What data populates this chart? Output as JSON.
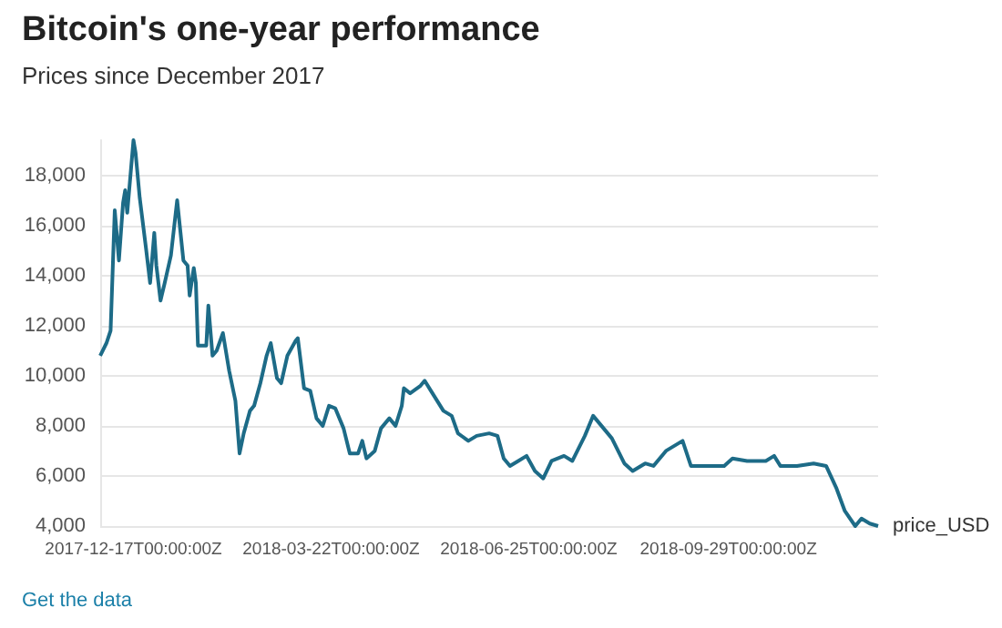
{
  "chart_data": {
    "type": "line",
    "title": "Bitcoin's one-year performance",
    "subtitle": "Prices since December 2017",
    "annotations": [
      "Get the data"
    ],
    "x": [
      "2017-12-01",
      "2017-12-04",
      "2017-12-06",
      "2017-12-08",
      "2017-12-10",
      "2017-12-12",
      "2017-12-13",
      "2017-12-14",
      "2017-12-17",
      "2017-12-18",
      "2017-12-20",
      "2017-12-23",
      "2017-12-25",
      "2017-12-27",
      "2017-12-28",
      "2017-12-30",
      "2018-01-01",
      "2018-01-04",
      "2018-01-07",
      "2018-01-10",
      "2018-01-12",
      "2018-01-13",
      "2018-01-15",
      "2018-01-16",
      "2018-01-17",
      "2018-01-21",
      "2018-01-22",
      "2018-01-24",
      "2018-01-26",
      "2018-01-29",
      "2018-02-01",
      "2018-02-04",
      "2018-02-06",
      "2018-02-08",
      "2018-02-11",
      "2018-02-13",
      "2018-02-16",
      "2018-02-19",
      "2018-02-21",
      "2018-02-24",
      "2018-02-26",
      "2018-03-01",
      "2018-03-05",
      "2018-03-06",
      "2018-03-09",
      "2018-03-12",
      "2018-03-15",
      "2018-03-18",
      "2018-03-21",
      "2018-03-24",
      "2018-03-28",
      "2018-03-31",
      "2018-04-04",
      "2018-04-06",
      "2018-04-08",
      "2018-04-12",
      "2018-04-15",
      "2018-04-19",
      "2018-04-22",
      "2018-04-25",
      "2018-04-26",
      "2018-04-29",
      "2018-05-04",
      "2018-05-06",
      "2018-05-09",
      "2018-05-12",
      "2018-05-15",
      "2018-05-19",
      "2018-05-22",
      "2018-05-27",
      "2018-05-31",
      "2018-06-06",
      "2018-06-10",
      "2018-06-13",
      "2018-06-16",
      "2018-06-20",
      "2018-06-24",
      "2018-06-28",
      "2018-07-02",
      "2018-07-06",
      "2018-07-12",
      "2018-07-16",
      "2018-07-22",
      "2018-07-26",
      "2018-07-29",
      "2018-08-04",
      "2018-08-10",
      "2018-08-14",
      "2018-08-20",
      "2018-08-24",
      "2018-08-30",
      "2018-09-07",
      "2018-09-11",
      "2018-09-18",
      "2018-09-27",
      "2018-10-01",
      "2018-10-08",
      "2018-10-17",
      "2018-10-21",
      "2018-10-24",
      "2018-11-01",
      "2018-11-09",
      "2018-11-15",
      "2018-11-20",
      "2018-11-24",
      "2018-11-29",
      "2018-12-02",
      "2018-12-06",
      "2018-12-10"
    ],
    "series": [
      {
        "name": "price_USD",
        "color": "#1d6b87",
        "values": [
          10800,
          11300,
          11800,
          16600,
          14600,
          16900,
          17400,
          16500,
          19400,
          18900,
          17100,
          15100,
          13700,
          15700,
          14400,
          13000,
          13700,
          14800,
          17000,
          14600,
          14400,
          13200,
          14300,
          13700,
          11200,
          11200,
          12800,
          10800,
          11000,
          11700,
          10200,
          9000,
          6900,
          7700,
          8600,
          8800,
          9700,
          10800,
          11300,
          9900,
          9700,
          10800,
          11400,
          11500,
          9500,
          9400,
          8300,
          8000,
          8800,
          8700,
          7900,
          6900,
          6900,
          7400,
          6700,
          7000,
          7900,
          8300,
          8000,
          8800,
          9500,
          9300,
          9600,
          9800,
          9400,
          9000,
          8600,
          8400,
          7700,
          7400,
          7600,
          7700,
          7600,
          6700,
          6400,
          6600,
          6800,
          6200,
          5900,
          6600,
          6800,
          6600,
          7600,
          8400,
          8100,
          7500,
          6500,
          6200,
          6500,
          6400,
          7000,
          7400,
          6400,
          6400,
          6400,
          6700,
          6600,
          6600,
          6800,
          6400,
          6400,
          6500,
          6400,
          5500,
          4600,
          4000,
          4300,
          4100,
          4000
        ]
      }
    ],
    "xlim": [
      "2017-12-01",
      "2018-12-10"
    ],
    "xticks": [
      {
        "value": "2017-12-17",
        "label": "2017-12-17T00:00:00Z"
      },
      {
        "value": "2018-03-22",
        "label": "2018-03-22T00:00:00Z"
      },
      {
        "value": "2018-06-25",
        "label": "2018-06-25T00:00:00Z"
      },
      {
        "value": "2018-09-29",
        "label": "2018-09-29T00:00:00Z"
      }
    ],
    "ylim": [
      4000,
      19400
    ],
    "yticks": [
      {
        "value": 4000,
        "label": "4,000"
      },
      {
        "value": 6000,
        "label": "6,000"
      },
      {
        "value": 8000,
        "label": "8,000"
      },
      {
        "value": 10000,
        "label": "10,000"
      },
      {
        "value": 12000,
        "label": "12,000"
      },
      {
        "value": 14000,
        "label": "14,000"
      },
      {
        "value": 16000,
        "label": "16,000"
      },
      {
        "value": 18000,
        "label": "18,000"
      }
    ],
    "grid": "y",
    "legend": false,
    "marker": "none",
    "line_style": "solid"
  }
}
